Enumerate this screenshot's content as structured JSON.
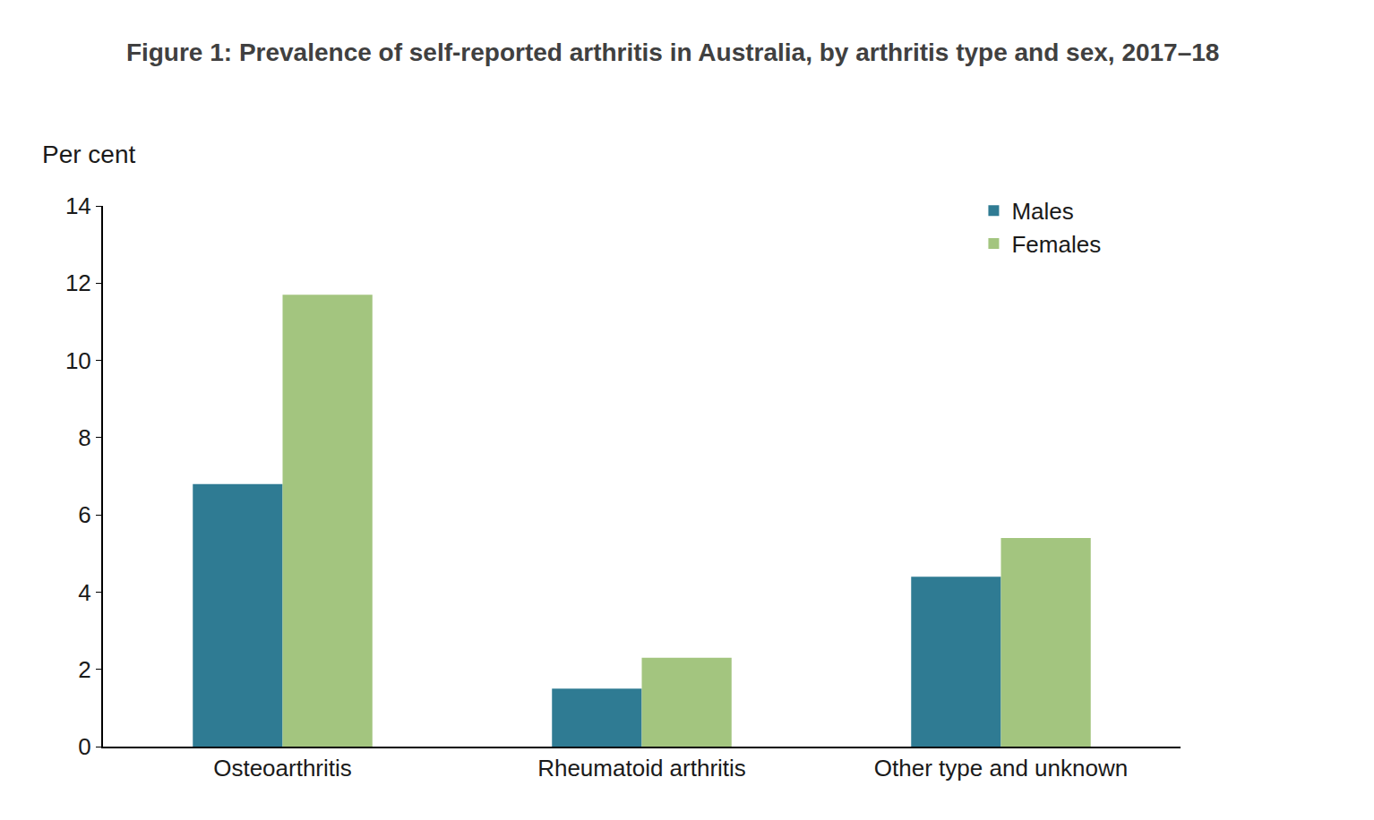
{
  "chart_data": {
    "type": "bar",
    "title": "Figure 1: Prevalence of self-reported arthritis in Australia, by arthritis type and sex, 2017–18",
    "y_label": "Per cent",
    "categories": [
      "Osteoarthritis",
      "Rheumatoid arthritis",
      "Other type and unknown"
    ],
    "series": [
      {
        "name": "Males",
        "color": "#2f7b93",
        "values": [
          6.8,
          1.5,
          4.4
        ]
      },
      {
        "name": "Females",
        "color": "#a3c57f",
        "values": [
          11.7,
          2.3,
          5.4
        ]
      }
    ],
    "ylim": [
      0,
      14
    ],
    "yticks": [
      0,
      2,
      4,
      6,
      8,
      10,
      12,
      14
    ],
    "grid": false,
    "legend": "top right"
  }
}
